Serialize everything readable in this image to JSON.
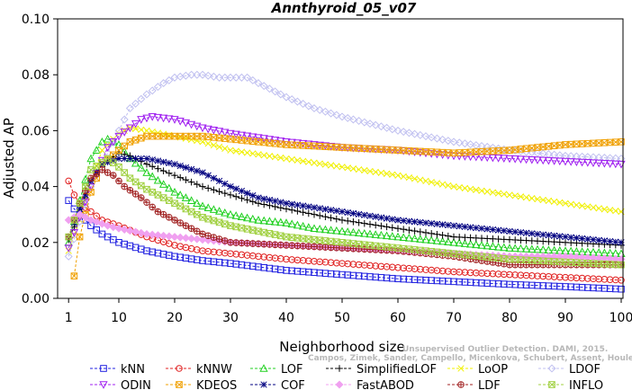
{
  "chart_data": {
    "type": "line",
    "title": "Annthyroid_05_v07",
    "xlabel": "Neighborhood size",
    "ylabel": "Adjusted AP",
    "xlim": [
      0,
      100
    ],
    "ylim": [
      0,
      0.1
    ],
    "xticks": [
      1,
      10,
      20,
      30,
      40,
      50,
      60,
      70,
      80,
      90,
      100
    ],
    "xtick_labels": [
      "1",
      "10",
      "20",
      "30",
      "40",
      "50",
      "60",
      "70",
      "80",
      "90",
      "100"
    ],
    "yticks": [
      0,
      0.02,
      0.04,
      0.06,
      0.08,
      0.1
    ],
    "ytick_labels": [
      "0.00",
      "0.02",
      "0.04",
      "0.06",
      "0.08",
      "0.10"
    ],
    "grid": false,
    "legend_position": "bottom",
    "watermark_lines": [
      "Unsupervised Outlier Detection. DAMI, 2015.",
      "Campos, Zimek, Sander, Campello, Micenkova, Schubert, Assent, Houle"
    ],
    "series": [
      {
        "name": "kNN",
        "color": "#2020e0",
        "marker": "square",
        "points": [
          [
            1,
            0.035
          ],
          [
            2,
            0.032
          ],
          [
            3,
            0.03
          ],
          [
            5,
            0.026
          ],
          [
            7,
            0.023
          ],
          [
            10,
            0.02
          ],
          [
            15,
            0.017
          ],
          [
            20,
            0.015
          ],
          [
            25,
            0.0135
          ],
          [
            30,
            0.0125
          ],
          [
            40,
            0.01
          ],
          [
            50,
            0.0085
          ],
          [
            60,
            0.007
          ],
          [
            70,
            0.006
          ],
          [
            80,
            0.005
          ],
          [
            90,
            0.0042
          ],
          [
            100,
            0.0033
          ]
        ]
      },
      {
        "name": "kNNW",
        "color": "#e02020",
        "marker": "circle",
        "points": [
          [
            1,
            0.042
          ],
          [
            2,
            0.037
          ],
          [
            3,
            0.034
          ],
          [
            5,
            0.031
          ],
          [
            7,
            0.028
          ],
          [
            10,
            0.026
          ],
          [
            15,
            0.022
          ],
          [
            20,
            0.019
          ],
          [
            25,
            0.017
          ],
          [
            30,
            0.016
          ],
          [
            40,
            0.014
          ],
          [
            50,
            0.0125
          ],
          [
            60,
            0.011
          ],
          [
            70,
            0.0095
          ],
          [
            80,
            0.0085
          ],
          [
            90,
            0.0075
          ],
          [
            100,
            0.0065
          ]
        ]
      },
      {
        "name": "LOF",
        "color": "#20d020",
        "marker": "triangle-up",
        "points": [
          [
            1,
            0.02
          ],
          [
            3,
            0.035
          ],
          [
            5,
            0.05
          ],
          [
            7,
            0.056
          ],
          [
            8,
            0.057
          ],
          [
            10,
            0.055
          ],
          [
            12,
            0.05
          ],
          [
            15,
            0.045
          ],
          [
            20,
            0.038
          ],
          [
            25,
            0.033
          ],
          [
            30,
            0.03
          ],
          [
            35,
            0.028
          ],
          [
            40,
            0.027
          ],
          [
            45,
            0.025
          ],
          [
            50,
            0.024
          ],
          [
            60,
            0.022
          ],
          [
            70,
            0.02
          ],
          [
            80,
            0.018
          ],
          [
            90,
            0.017
          ],
          [
            100,
            0.016
          ]
        ]
      },
      {
        "name": "SimplifiedLOF",
        "color": "#000000",
        "marker": "plus",
        "points": [
          [
            1,
            0.021
          ],
          [
            3,
            0.03
          ],
          [
            5,
            0.042
          ],
          [
            7,
            0.048
          ],
          [
            10,
            0.052
          ],
          [
            12,
            0.051
          ],
          [
            15,
            0.048
          ],
          [
            20,
            0.044
          ],
          [
            25,
            0.04
          ],
          [
            30,
            0.037
          ],
          [
            35,
            0.034
          ],
          [
            40,
            0.032
          ],
          [
            50,
            0.028
          ],
          [
            60,
            0.025
          ],
          [
            70,
            0.022
          ],
          [
            80,
            0.021
          ],
          [
            90,
            0.02
          ],
          [
            100,
            0.019
          ]
        ]
      },
      {
        "name": "LoOP",
        "color": "#f0f000",
        "marker": "x",
        "points": [
          [
            1,
            0.017
          ],
          [
            3,
            0.028
          ],
          [
            5,
            0.042
          ],
          [
            7,
            0.053
          ],
          [
            10,
            0.059
          ],
          [
            12,
            0.061
          ],
          [
            15,
            0.06
          ],
          [
            20,
            0.058
          ],
          [
            25,
            0.056
          ],
          [
            30,
            0.053
          ],
          [
            40,
            0.05
          ],
          [
            50,
            0.047
          ],
          [
            60,
            0.044
          ],
          [
            70,
            0.04
          ],
          [
            80,
            0.037
          ],
          [
            90,
            0.034
          ],
          [
            100,
            0.031
          ]
        ]
      },
      {
        "name": "LDOF",
        "color": "#c0c0f0",
        "marker": "diamond",
        "points": [
          [
            1,
            0.015
          ],
          [
            5,
            0.04
          ],
          [
            8,
            0.052
          ],
          [
            10,
            0.06
          ],
          [
            12,
            0.068
          ],
          [
            15,
            0.073
          ],
          [
            18,
            0.077
          ],
          [
            20,
            0.079
          ],
          [
            23,
            0.08
          ],
          [
            25,
            0.08
          ],
          [
            28,
            0.079
          ],
          [
            30,
            0.079
          ],
          [
            33,
            0.079
          ],
          [
            35,
            0.077
          ],
          [
            40,
            0.072
          ],
          [
            45,
            0.068
          ],
          [
            50,
            0.065
          ],
          [
            60,
            0.06
          ],
          [
            70,
            0.056
          ],
          [
            80,
            0.053
          ],
          [
            90,
            0.051
          ],
          [
            100,
            0.05
          ]
        ]
      },
      {
        "name": "ODIN",
        "color": "#a020f0",
        "marker": "triangle-down",
        "points": [
          [
            1,
            0.018
          ],
          [
            5,
            0.04
          ],
          [
            8,
            0.054
          ],
          [
            10,
            0.058
          ],
          [
            12,
            0.061
          ],
          [
            14,
            0.064
          ],
          [
            16,
            0.065
          ],
          [
            20,
            0.064
          ],
          [
            25,
            0.061
          ],
          [
            30,
            0.059
          ],
          [
            40,
            0.056
          ],
          [
            50,
            0.054
          ],
          [
            60,
            0.053
          ],
          [
            70,
            0.051
          ],
          [
            80,
            0.05
          ],
          [
            90,
            0.049
          ],
          [
            100,
            0.048
          ]
        ]
      },
      {
        "name": "KDEOS",
        "color": "#f0a000",
        "marker": "square-x",
        "points": [
          [
            2,
            0.008
          ],
          [
            3,
            0.022
          ],
          [
            5,
            0.038
          ],
          [
            7,
            0.048
          ],
          [
            10,
            0.053
          ],
          [
            12,
            0.056
          ],
          [
            15,
            0.058
          ],
          [
            20,
            0.058
          ],
          [
            25,
            0.058
          ],
          [
            30,
            0.057
          ],
          [
            35,
            0.056
          ],
          [
            40,
            0.055
          ],
          [
            50,
            0.054
          ],
          [
            60,
            0.053
          ],
          [
            70,
            0.052
          ],
          [
            80,
            0.053
          ],
          [
            90,
            0.055
          ],
          [
            100,
            0.056
          ]
        ]
      },
      {
        "name": "COF",
        "color": "#000080",
        "marker": "asterisk",
        "points": [
          [
            1,
            0.022
          ],
          [
            3,
            0.032
          ],
          [
            5,
            0.042
          ],
          [
            7,
            0.048
          ],
          [
            10,
            0.05
          ],
          [
            12,
            0.05
          ],
          [
            15,
            0.05
          ],
          [
            20,
            0.048
          ],
          [
            25,
            0.045
          ],
          [
            30,
            0.04
          ],
          [
            35,
            0.036
          ],
          [
            40,
            0.034
          ],
          [
            50,
            0.031
          ],
          [
            60,
            0.028
          ],
          [
            70,
            0.026
          ],
          [
            80,
            0.024
          ],
          [
            90,
            0.022
          ],
          [
            100,
            0.02
          ]
        ]
      },
      {
        "name": "FastABOD",
        "color": "#f0a0f0",
        "marker": "diamond-filled",
        "points": [
          [
            1,
            0.028
          ],
          [
            3,
            0.03
          ],
          [
            5,
            0.028
          ],
          [
            8,
            0.026
          ],
          [
            10,
            0.025
          ],
          [
            15,
            0.023
          ],
          [
            20,
            0.022
          ],
          [
            25,
            0.021
          ],
          [
            30,
            0.02
          ],
          [
            40,
            0.019
          ],
          [
            50,
            0.018
          ],
          [
            60,
            0.017
          ],
          [
            70,
            0.016
          ],
          [
            80,
            0.015
          ],
          [
            90,
            0.015
          ],
          [
            100,
            0.014
          ]
        ]
      },
      {
        "name": "LDF",
        "color": "#a02020",
        "marker": "circle-plus",
        "points": [
          [
            1,
            0.022
          ],
          [
            3,
            0.034
          ],
          [
            5,
            0.043
          ],
          [
            7,
            0.046
          ],
          [
            9,
            0.044
          ],
          [
            11,
            0.04
          ],
          [
            14,
            0.036
          ],
          [
            17,
            0.031
          ],
          [
            20,
            0.028
          ],
          [
            25,
            0.023
          ],
          [
            30,
            0.02
          ],
          [
            40,
            0.019
          ],
          [
            50,
            0.018
          ],
          [
            60,
            0.017
          ],
          [
            70,
            0.015
          ],
          [
            80,
            0.012
          ],
          [
            90,
            0.012
          ],
          [
            100,
            0.012
          ]
        ]
      },
      {
        "name": "INFLO",
        "color": "#a0d040",
        "marker": "square-x",
        "points": [
          [
            1,
            0.022
          ],
          [
            5,
            0.046
          ],
          [
            8,
            0.05
          ],
          [
            10,
            0.047
          ],
          [
            12,
            0.043
          ],
          [
            15,
            0.039
          ],
          [
            20,
            0.034
          ],
          [
            25,
            0.029
          ],
          [
            30,
            0.026
          ],
          [
            40,
            0.022
          ],
          [
            50,
            0.02
          ],
          [
            60,
            0.018
          ],
          [
            70,
            0.016
          ],
          [
            80,
            0.014
          ],
          [
            90,
            0.013
          ],
          [
            100,
            0.012
          ]
        ]
      }
    ]
  }
}
